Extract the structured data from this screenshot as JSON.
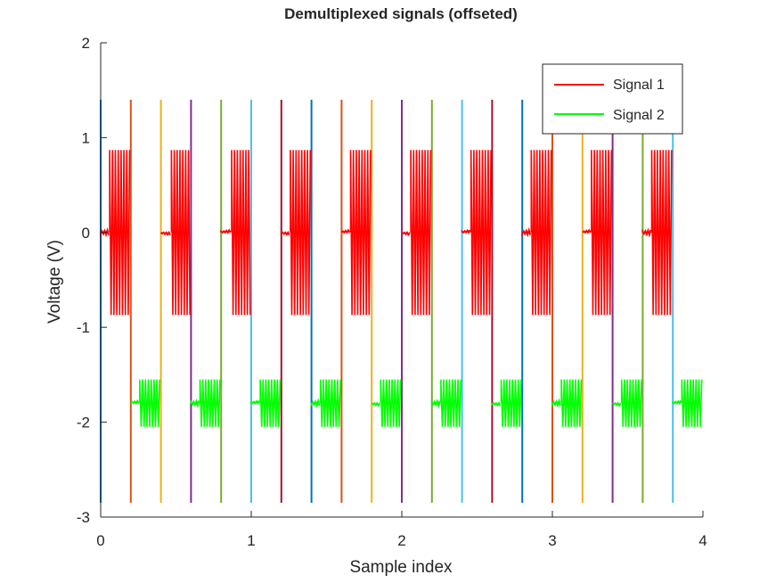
{
  "chart_data": {
    "type": "line",
    "title": "Demultiplexed signals (offseted)",
    "xlabel": "Sample index",
    "ylabel": "Voltage (V)",
    "xlim": [
      0,
      4
    ],
    "ylim": [
      -3,
      2
    ],
    "xticks": [
      "0",
      "1",
      "2",
      "3",
      "4"
    ],
    "yticks": [
      "-3",
      "-2",
      "-1",
      "0",
      "1",
      "2"
    ],
    "legend_position": "top-right",
    "series": [
      {
        "name": "Signal 1",
        "color": "#ff0000",
        "baseline": 0,
        "amplitude": 0.87,
        "bursts": [
          {
            "idle_start": 0.0,
            "burst_start": 0.06,
            "burst_end": 0.2
          },
          {
            "idle_start": 0.4,
            "burst_start": 0.47,
            "burst_end": 0.6
          },
          {
            "idle_start": 0.8,
            "burst_start": 0.87,
            "burst_end": 1.0
          },
          {
            "idle_start": 1.2,
            "burst_start": 1.26,
            "burst_end": 1.4
          },
          {
            "idle_start": 1.6,
            "burst_start": 1.66,
            "burst_end": 1.8
          },
          {
            "idle_start": 2.0,
            "burst_start": 2.06,
            "burst_end": 2.2
          },
          {
            "idle_start": 2.4,
            "burst_start": 2.46,
            "burst_end": 2.6
          },
          {
            "idle_start": 2.8,
            "burst_start": 2.86,
            "burst_end": 3.0
          },
          {
            "idle_start": 3.2,
            "burst_start": 3.26,
            "burst_end": 3.4
          },
          {
            "idle_start": 3.6,
            "burst_start": 3.66,
            "burst_end": 3.8
          }
        ]
      },
      {
        "name": "Signal 2",
        "color": "#00ff00",
        "baseline": -1.8,
        "amplitude": 0.25,
        "bursts": [
          {
            "idle_start": 0.2,
            "burst_start": 0.26,
            "burst_end": 0.4
          },
          {
            "idle_start": 0.6,
            "burst_start": 0.66,
            "burst_end": 0.8
          },
          {
            "idle_start": 1.0,
            "burst_start": 1.06,
            "burst_end": 1.2
          },
          {
            "idle_start": 1.4,
            "burst_start": 1.46,
            "burst_end": 1.6
          },
          {
            "idle_start": 1.8,
            "burst_start": 1.86,
            "burst_end": 2.0
          },
          {
            "idle_start": 2.2,
            "burst_start": 2.26,
            "burst_end": 2.4
          },
          {
            "idle_start": 2.6,
            "burst_start": 2.66,
            "burst_end": 2.8
          },
          {
            "idle_start": 3.0,
            "burst_start": 3.06,
            "burst_end": 3.2
          },
          {
            "idle_start": 3.4,
            "burst_start": 3.46,
            "burst_end": 3.6
          },
          {
            "idle_start": 3.8,
            "burst_start": 3.86,
            "burst_end": 4.0
          }
        ]
      }
    ],
    "vertical_lines": {
      "y_range": [
        -2.85,
        1.4
      ],
      "positions": [
        0.0,
        0.2,
        0.4,
        0.6,
        0.8,
        1.0,
        1.2,
        1.4,
        1.6,
        1.8,
        2.0,
        2.2,
        2.4,
        2.6,
        2.8,
        3.0,
        3.2,
        3.4,
        3.6,
        3.8
      ],
      "colors": [
        "#0072bd",
        "#d95319",
        "#edb120",
        "#7e2f8e",
        "#77ac30",
        "#4dbeee",
        "#a2142f"
      ]
    }
  }
}
